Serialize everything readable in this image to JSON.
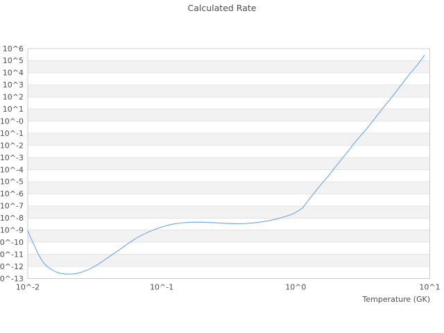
{
  "title": "Calculated Rate",
  "chart_data": {
    "type": "line",
    "title": "Calculated Rate",
    "xlabel": "Temperature (GK)",
    "ylabel": "",
    "x_scale": "log",
    "y_scale": "log",
    "x_log_range": [
      -2,
      1
    ],
    "y_exp_range": [
      6,
      -13
    ],
    "grid": "horizontal zebra bands, plain box border, no vertical gridlines",
    "legend": "none",
    "x_ticks": [
      {
        "label": "10^-2",
        "log10": -2
      },
      {
        "label": "10^-1",
        "log10": -1
      },
      {
        "label": "10^0",
        "log10": 0
      },
      {
        "label": "10^1",
        "log10": 1
      }
    ],
    "y_ticks": [
      "10^6",
      "10^5",
      "10^4",
      "10^3",
      "10^2",
      "10^1",
      "10^-0",
      "10^-1",
      "10^-2",
      "10^-3",
      "10^-4",
      "10^-5",
      "10^-6",
      "10^-7",
      "10^-8",
      "10^-9",
      "10^-10",
      "10^-11",
      "10^-12",
      "10^-13"
    ],
    "series": [
      {
        "name": "calculated rate",
        "color": "#76ace4",
        "points_log10_T_vs_log10_rate": [
          [
            -2.0,
            -9.05
          ],
          [
            -1.975,
            -9.7
          ],
          [
            -1.95,
            -10.3
          ],
          [
            -1.925,
            -10.9
          ],
          [
            -1.9,
            -11.4
          ],
          [
            -1.875,
            -11.78
          ],
          [
            -1.85,
            -12.05
          ],
          [
            -1.82,
            -12.28
          ],
          [
            -1.79,
            -12.45
          ],
          [
            -1.76,
            -12.56
          ],
          [
            -1.72,
            -12.62
          ],
          [
            -1.68,
            -12.64
          ],
          [
            -1.64,
            -12.6
          ],
          [
            -1.6,
            -12.48
          ],
          [
            -1.55,
            -12.27
          ],
          [
            -1.5,
            -11.99
          ],
          [
            -1.45,
            -11.65
          ],
          [
            -1.4,
            -11.25
          ],
          [
            -1.35,
            -10.88
          ],
          [
            -1.3,
            -10.5
          ],
          [
            -1.25,
            -10.1
          ],
          [
            -1.2,
            -9.73
          ],
          [
            -1.15,
            -9.42
          ],
          [
            -1.1,
            -9.16
          ],
          [
            -1.05,
            -8.93
          ],
          [
            -1.0,
            -8.74
          ],
          [
            -0.95,
            -8.58
          ],
          [
            -0.9,
            -8.47
          ],
          [
            -0.85,
            -8.4
          ],
          [
            -0.8,
            -8.36
          ],
          [
            -0.74,
            -8.34
          ],
          [
            -0.68,
            -8.35
          ],
          [
            -0.62,
            -8.38
          ],
          [
            -0.56,
            -8.42
          ],
          [
            -0.5,
            -8.45
          ],
          [
            -0.44,
            -8.47
          ],
          [
            -0.38,
            -8.46
          ],
          [
            -0.32,
            -8.41
          ],
          [
            -0.26,
            -8.33
          ],
          [
            -0.2,
            -8.22
          ],
          [
            -0.14,
            -8.07
          ],
          [
            -0.08,
            -7.88
          ],
          [
            -0.02,
            -7.66
          ],
          [
            0.05,
            -7.18
          ],
          [
            0.1,
            -6.45
          ],
          [
            0.15,
            -5.75
          ],
          [
            0.2,
            -5.08
          ],
          [
            0.245,
            -4.5
          ],
          [
            0.29,
            -3.85
          ],
          [
            0.34,
            -3.17
          ],
          [
            0.39,
            -2.48
          ],
          [
            0.435,
            -1.83
          ],
          [
            0.49,
            -1.12
          ],
          [
            0.54,
            -0.49
          ],
          [
            0.59,
            0.22
          ],
          [
            0.64,
            0.94
          ],
          [
            0.7,
            1.76
          ],
          [
            0.75,
            2.46
          ],
          [
            0.8,
            3.18
          ],
          [
            0.85,
            3.9
          ],
          [
            0.89,
            4.42
          ],
          [
            0.935,
            5.04
          ],
          [
            0.96,
            5.45
          ]
        ]
      }
    ]
  },
  "colors": {
    "background": "#ffffff",
    "band": "#f2f2f2",
    "gridline": "#e4e4e4",
    "border": "#cccccc",
    "text": "#4d4d4d",
    "line": "#76ace4"
  }
}
